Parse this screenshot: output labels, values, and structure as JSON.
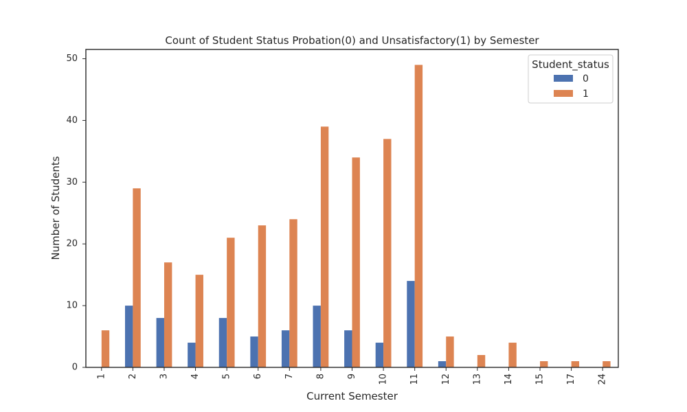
{
  "colors": {
    "series0": "#4c72b0",
    "series1": "#dd8452",
    "axes": "#262626",
    "legend_border": "#cccccc"
  },
  "chart_data": {
    "type": "bar",
    "title": "Count of Student Status Probation(0) and Unsatisfactory(1) by Semester",
    "xlabel": "Current Semester",
    "ylabel": "Number of Students",
    "categories": [
      "1",
      "2",
      "3",
      "4",
      "5",
      "6",
      "7",
      "8",
      "9",
      "10",
      "11",
      "12",
      "13",
      "14",
      "15",
      "17",
      "24"
    ],
    "series": [
      {
        "name": "0",
        "values": [
          0,
          10,
          8,
          4,
          8,
          5,
          6,
          10,
          6,
          4,
          14,
          1,
          0,
          0,
          0,
          0,
          0
        ]
      },
      {
        "name": "1",
        "values": [
          6,
          29,
          17,
          15,
          21,
          23,
          24,
          39,
          34,
          37,
          49,
          5,
          2,
          4,
          1,
          1,
          1
        ]
      }
    ],
    "ylim": [
      0,
      51.5
    ],
    "yticks": [
      0,
      10,
      20,
      30,
      40,
      50
    ],
    "legend": {
      "title": "Student_status",
      "placement": "top-right"
    },
    "grid": false
  }
}
